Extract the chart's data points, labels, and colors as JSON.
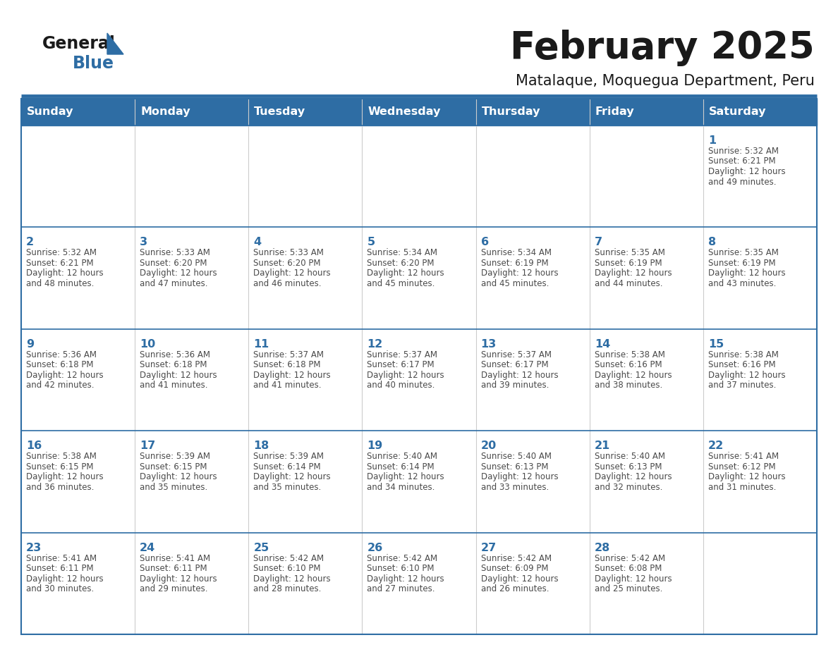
{
  "title": "February 2025",
  "subtitle": "Matalaque, Moquegua Department, Peru",
  "days_of_week": [
    "Sunday",
    "Monday",
    "Tuesday",
    "Wednesday",
    "Thursday",
    "Friday",
    "Saturday"
  ],
  "header_bg": "#2E6DA4",
  "header_text": "#FFFFFF",
  "border_color": "#2E6DA4",
  "day_num_color": "#2E6DA4",
  "text_color": "#4a4a4a",
  "bg_color": "#FFFFFF",
  "calendar_data": [
    [
      null,
      null,
      null,
      null,
      null,
      null,
      {
        "day": "1",
        "sunrise": "5:32 AM",
        "sunset": "6:21 PM",
        "daylight": "12 hours",
        "daylight2": "and 49 minutes."
      }
    ],
    [
      {
        "day": "2",
        "sunrise": "5:32 AM",
        "sunset": "6:21 PM",
        "daylight": "12 hours",
        "daylight2": "and 48 minutes."
      },
      {
        "day": "3",
        "sunrise": "5:33 AM",
        "sunset": "6:20 PM",
        "daylight": "12 hours",
        "daylight2": "and 47 minutes."
      },
      {
        "day": "4",
        "sunrise": "5:33 AM",
        "sunset": "6:20 PM",
        "daylight": "12 hours",
        "daylight2": "and 46 minutes."
      },
      {
        "day": "5",
        "sunrise": "5:34 AM",
        "sunset": "6:20 PM",
        "daylight": "12 hours",
        "daylight2": "and 45 minutes."
      },
      {
        "day": "6",
        "sunrise": "5:34 AM",
        "sunset": "6:19 PM",
        "daylight": "12 hours",
        "daylight2": "and 45 minutes."
      },
      {
        "day": "7",
        "sunrise": "5:35 AM",
        "sunset": "6:19 PM",
        "daylight": "12 hours",
        "daylight2": "and 44 minutes."
      },
      {
        "day": "8",
        "sunrise": "5:35 AM",
        "sunset": "6:19 PM",
        "daylight": "12 hours",
        "daylight2": "and 43 minutes."
      }
    ],
    [
      {
        "day": "9",
        "sunrise": "5:36 AM",
        "sunset": "6:18 PM",
        "daylight": "12 hours",
        "daylight2": "and 42 minutes."
      },
      {
        "day": "10",
        "sunrise": "5:36 AM",
        "sunset": "6:18 PM",
        "daylight": "12 hours",
        "daylight2": "and 41 minutes."
      },
      {
        "day": "11",
        "sunrise": "5:37 AM",
        "sunset": "6:18 PM",
        "daylight": "12 hours",
        "daylight2": "and 41 minutes."
      },
      {
        "day": "12",
        "sunrise": "5:37 AM",
        "sunset": "6:17 PM",
        "daylight": "12 hours",
        "daylight2": "and 40 minutes."
      },
      {
        "day": "13",
        "sunrise": "5:37 AM",
        "sunset": "6:17 PM",
        "daylight": "12 hours",
        "daylight2": "and 39 minutes."
      },
      {
        "day": "14",
        "sunrise": "5:38 AM",
        "sunset": "6:16 PM",
        "daylight": "12 hours",
        "daylight2": "and 38 minutes."
      },
      {
        "day": "15",
        "sunrise": "5:38 AM",
        "sunset": "6:16 PM",
        "daylight": "12 hours",
        "daylight2": "and 37 minutes."
      }
    ],
    [
      {
        "day": "16",
        "sunrise": "5:38 AM",
        "sunset": "6:15 PM",
        "daylight": "12 hours",
        "daylight2": "and 36 minutes."
      },
      {
        "day": "17",
        "sunrise": "5:39 AM",
        "sunset": "6:15 PM",
        "daylight": "12 hours",
        "daylight2": "and 35 minutes."
      },
      {
        "day": "18",
        "sunrise": "5:39 AM",
        "sunset": "6:14 PM",
        "daylight": "12 hours",
        "daylight2": "and 35 minutes."
      },
      {
        "day": "19",
        "sunrise": "5:40 AM",
        "sunset": "6:14 PM",
        "daylight": "12 hours",
        "daylight2": "and 34 minutes."
      },
      {
        "day": "20",
        "sunrise": "5:40 AM",
        "sunset": "6:13 PM",
        "daylight": "12 hours",
        "daylight2": "and 33 minutes."
      },
      {
        "day": "21",
        "sunrise": "5:40 AM",
        "sunset": "6:13 PM",
        "daylight": "12 hours",
        "daylight2": "and 32 minutes."
      },
      {
        "day": "22",
        "sunrise": "5:41 AM",
        "sunset": "6:12 PM",
        "daylight": "12 hours",
        "daylight2": "and 31 minutes."
      }
    ],
    [
      {
        "day": "23",
        "sunrise": "5:41 AM",
        "sunset": "6:11 PM",
        "daylight": "12 hours",
        "daylight2": "and 30 minutes."
      },
      {
        "day": "24",
        "sunrise": "5:41 AM",
        "sunset": "6:11 PM",
        "daylight": "12 hours",
        "daylight2": "and 29 minutes."
      },
      {
        "day": "25",
        "sunrise": "5:42 AM",
        "sunset": "6:10 PM",
        "daylight": "12 hours",
        "daylight2": "and 28 minutes."
      },
      {
        "day": "26",
        "sunrise": "5:42 AM",
        "sunset": "6:10 PM",
        "daylight": "12 hours",
        "daylight2": "and 27 minutes."
      },
      {
        "day": "27",
        "sunrise": "5:42 AM",
        "sunset": "6:09 PM",
        "daylight": "12 hours",
        "daylight2": "and 26 minutes."
      },
      {
        "day": "28",
        "sunrise": "5:42 AM",
        "sunset": "6:08 PM",
        "daylight": "12 hours",
        "daylight2": "and 25 minutes."
      },
      null
    ]
  ]
}
